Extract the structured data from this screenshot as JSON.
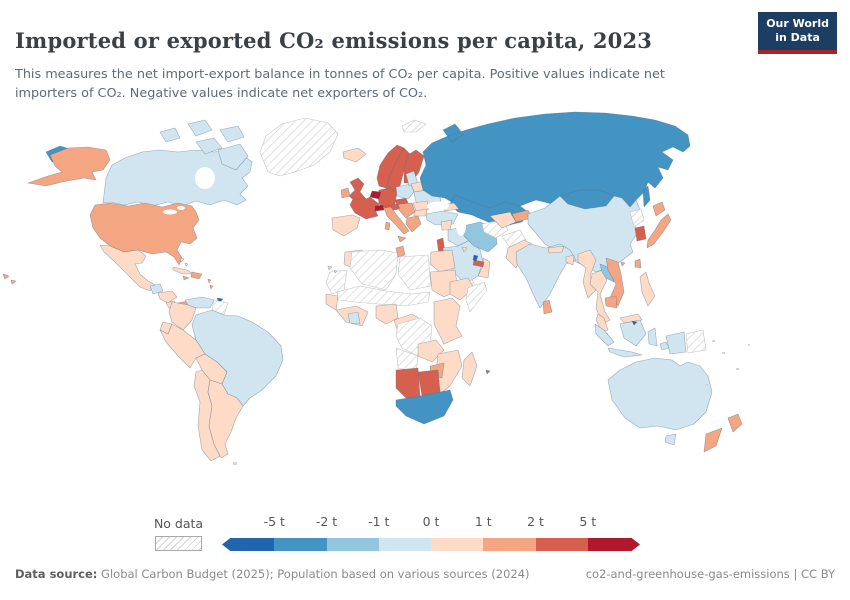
{
  "header": {
    "title": "Imported or exported CO₂ emissions per capita, 2023",
    "subtitle": "This measures the net import-export balance in tonnes of CO₂ per capita. Positive values indicate net importers of CO₂. Negative values indicate net exporters of CO₂.",
    "logo": {
      "line1": "Our World",
      "line2": "in Data",
      "bg": "#1d3d63",
      "accent": "#a82429"
    }
  },
  "legend": {
    "no_data_label": "No data",
    "ticks": [
      "-5 t",
      "-2 t",
      "-1 t",
      "0 t",
      "1 t",
      "2 t",
      "5 t"
    ]
  },
  "footer": {
    "source_label": "Data source:",
    "source_text": " Global Carbon Budget (2025); Population based on various sources (2024)",
    "right_slug": "co2-and-greenhouse-gas-emissions",
    "divider": " | ",
    "license": "CC BY"
  },
  "chart_data": {
    "type": "choropleth-map",
    "title": "Imported or exported CO₂ emissions per capita, 2023",
    "unit": "tonnes of CO₂ per capita",
    "year": 2023,
    "legend_position": "bottom",
    "bins": [
      {
        "label": "less than -5 t",
        "color": "#2166ac"
      },
      {
        "label": "-5 t to -2 t",
        "color": "#4393c3"
      },
      {
        "label": "-2 t to -1 t",
        "color": "#92c5de"
      },
      {
        "label": "-1 t to 0 t",
        "color": "#d1e5f0"
      },
      {
        "label": "0 t to 1 t",
        "color": "#fddbc7"
      },
      {
        "label": "1 t to 2 t",
        "color": "#f4a582"
      },
      {
        "label": "2 t to 5 t",
        "color": "#d6604d"
      },
      {
        "label": "more than 5 t",
        "color": "#b2182b"
      }
    ],
    "no_data": {
      "label": "No data",
      "pattern": "diagonal-hatch"
    },
    "regions": {
      "chukotka-russia": 1,
      "alaska": 5,
      "canada": 3,
      "canada-arctic-1": 3,
      "canada-arctic-2": 3,
      "canada-arctic-3": 3,
      "victoria-island": 3,
      "baffin-island": 3,
      "greenland": "nd",
      "usa": 5,
      "hawaii": 5,
      "mexico": 4,
      "guatemala": 3,
      "honduras-nicaragua": 4,
      "costa-rica": 4,
      "panama": 5,
      "cuba": 4,
      "jamaica": 5,
      "hispaniola": 5,
      "bahamas": 4,
      "lesser-antilles": 5,
      "trinidad-and-tobago": 0,
      "venezuela": 3,
      "guyana": "nd",
      "colombia": 4,
      "ecuador": 4,
      "brazil": 3,
      "peru": 4,
      "bolivia": 4,
      "chile": 4,
      "argentina": 4,
      "iceland": 4,
      "svalbard": "nd",
      "norway": 6,
      "sweden": 6,
      "finland": 6,
      "denmark": 6,
      "uk": 6,
      "ireland": 5,
      "benelux": 7,
      "germany": 6,
      "france": 6,
      "switzerland": 7,
      "austria": 6,
      "czechia": 6,
      "poland": 3,
      "baltics": 3,
      "belarus": 4,
      "ukraine": 3,
      "romania": 4,
      "bulgaria": 4,
      "balkans": 5,
      "greece": 5,
      "italy": 5,
      "spain": 4,
      "russia": 1,
      "kazakhstan": 1,
      "mongolia": 1,
      "turkey": 3,
      "caucasus": 4,
      "syria": 4,
      "iraq": 3,
      "israel-lebanon": 6,
      "saudi-arabia": 3,
      "yemen": "nd",
      "oman": 4,
      "uae": 6,
      "qatar": 0,
      "kuwait": 4,
      "iran": 2,
      "turkmenistan": "nd",
      "uzbekistan": 4,
      "kyrgyzstan": 5,
      "afghanistan": "nd",
      "pakistan": 4,
      "india": 3,
      "nepal": 4,
      "bangladesh": 4,
      "myanmar": 4,
      "thailand": 4,
      "laos": 2,
      "vietnam": 5,
      "cambodia": 5,
      "malaysia": 4,
      "east-malaysia": 4,
      "singapore": 7,
      "sri-lanka": 5,
      "indonesia": 3,
      "brunei": 0,
      "papua-new-guinea": "nd",
      "philippines": 4,
      "taiwan": 5,
      "north-korea": "nd",
      "south-korea": 6,
      "japan": 5,
      "hong-kong": 5,
      "china": 3,
      "morocco": 4,
      "western-sahara-mauritania": "nd",
      "algeria": "nd",
      "tunisia": 5,
      "libya": "nd",
      "egypt": 4,
      "sudan": 4,
      "sahel": "nd",
      "senegal": 4,
      "west-africa-coast": 4,
      "cote-divoire": 3,
      "nigeria": 4,
      "cameroon-congo": 4,
      "ethiopia": 4,
      "somalia": "nd",
      "kenya-tanzania": 4,
      "drc": "nd",
      "angola": "nd",
      "zambia": 4,
      "mozambique": 4,
      "zimbabwe": 5,
      "namibia": 6,
      "botswana": 6,
      "south-africa": 1,
      "madagascar": 4,
      "mauritius": 6,
      "canary-islands": 4,
      "australia": 3,
      "tasmania": 3,
      "new-zealand": 5
    }
  }
}
